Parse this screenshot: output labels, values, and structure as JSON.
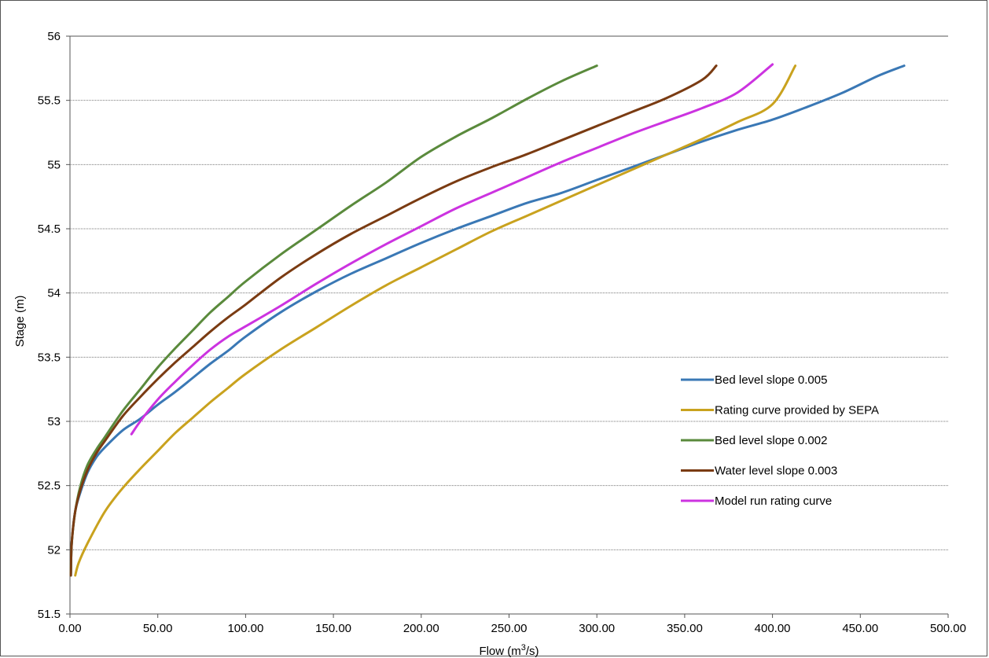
{
  "chart_data": {
    "type": "line",
    "title": "",
    "xlabel": "Flow (m",
    "xlabel_sup": "3",
    "xlabel_tail": "/s)",
    "ylabel": "Stage (m)",
    "xlim": [
      0,
      500
    ],
    "ylim": [
      51.5,
      56
    ],
    "x_ticks": [
      "0.00",
      "50.00",
      "100.00",
      "150.00",
      "200.00",
      "250.00",
      "300.00",
      "350.00",
      "400.00",
      "450.00",
      "500.00"
    ],
    "y_ticks": [
      "51.5",
      "52",
      "52.5",
      "53",
      "53.5",
      "54",
      "54.5",
      "55",
      "55.5",
      "56"
    ],
    "grid": "horizontal",
    "legend_position": "right",
    "series": [
      {
        "name": "Bed level slope 0.005",
        "color": "#3A78B5",
        "points": [
          [
            0.5,
            51.8
          ],
          [
            1,
            52.05
          ],
          [
            3,
            52.3
          ],
          [
            6,
            52.45
          ],
          [
            10,
            52.6
          ],
          [
            15,
            52.72
          ],
          [
            20,
            52.8
          ],
          [
            30,
            52.93
          ],
          [
            40,
            53.02
          ],
          [
            50,
            53.13
          ],
          [
            60,
            53.23
          ],
          [
            70,
            53.34
          ],
          [
            80,
            53.45
          ],
          [
            90,
            53.55
          ],
          [
            100,
            53.66
          ],
          [
            120,
            53.85
          ],
          [
            140,
            54.01
          ],
          [
            160,
            54.15
          ],
          [
            180,
            54.27
          ],
          [
            200,
            54.39
          ],
          [
            220,
            54.5
          ],
          [
            240,
            54.6
          ],
          [
            260,
            54.7
          ],
          [
            280,
            54.78
          ],
          [
            300,
            54.88
          ],
          [
            320,
            54.98
          ],
          [
            340,
            55.08
          ],
          [
            360,
            55.18
          ],
          [
            380,
            55.27
          ],
          [
            400,
            55.35
          ],
          [
            420,
            55.45
          ],
          [
            440,
            55.56
          ],
          [
            460,
            55.69
          ],
          [
            475,
            55.77
          ]
        ]
      },
      {
        "name": "Rating curve provided by SEPA",
        "color": "#C9A21E",
        "points": [
          [
            3,
            51.8
          ],
          [
            5,
            51.9
          ],
          [
            10,
            52.05
          ],
          [
            20,
            52.3
          ],
          [
            30,
            52.48
          ],
          [
            40,
            52.63
          ],
          [
            50,
            52.77
          ],
          [
            60,
            52.91
          ],
          [
            70,
            53.03
          ],
          [
            80,
            53.15
          ],
          [
            90,
            53.26
          ],
          [
            100,
            53.37
          ],
          [
            120,
            53.56
          ],
          [
            140,
            53.73
          ],
          [
            160,
            53.9
          ],
          [
            180,
            54.06
          ],
          [
            200,
            54.2
          ],
          [
            220,
            54.34
          ],
          [
            240,
            54.48
          ],
          [
            260,
            54.6
          ],
          [
            280,
            54.72
          ],
          [
            300,
            54.84
          ],
          [
            320,
            54.96
          ],
          [
            340,
            55.08
          ],
          [
            360,
            55.2
          ],
          [
            380,
            55.33
          ],
          [
            400,
            55.47
          ],
          [
            413,
            55.77
          ]
        ]
      },
      {
        "name": "Bed level slope 0.002",
        "color": "#5A8A3C",
        "points": [
          [
            0.5,
            51.8
          ],
          [
            1,
            52.05
          ],
          [
            3,
            52.3
          ],
          [
            6,
            52.5
          ],
          [
            10,
            52.66
          ],
          [
            15,
            52.78
          ],
          [
            20,
            52.88
          ],
          [
            30,
            53.08
          ],
          [
            40,
            53.25
          ],
          [
            50,
            53.42
          ],
          [
            60,
            53.57
          ],
          [
            70,
            53.71
          ],
          [
            80,
            53.85
          ],
          [
            90,
            53.97
          ],
          [
            100,
            54.09
          ],
          [
            120,
            54.3
          ],
          [
            140,
            54.49
          ],
          [
            160,
            54.68
          ],
          [
            180,
            54.86
          ],
          [
            200,
            55.06
          ],
          [
            220,
            55.22
          ],
          [
            240,
            55.36
          ],
          [
            260,
            55.51
          ],
          [
            280,
            55.65
          ],
          [
            300,
            55.77
          ]
        ]
      },
      {
        "name": "Water level slope 0.003",
        "color": "#7A3B12",
        "points": [
          [
            0.5,
            51.8
          ],
          [
            1,
            52.05
          ],
          [
            3,
            52.3
          ],
          [
            6,
            52.47
          ],
          [
            10,
            52.62
          ],
          [
            15,
            52.75
          ],
          [
            20,
            52.85
          ],
          [
            30,
            53.04
          ],
          [
            40,
            53.19
          ],
          [
            50,
            53.33
          ],
          [
            60,
            53.46
          ],
          [
            70,
            53.58
          ],
          [
            80,
            53.7
          ],
          [
            90,
            53.81
          ],
          [
            100,
            53.91
          ],
          [
            120,
            54.12
          ],
          [
            140,
            54.3
          ],
          [
            160,
            54.46
          ],
          [
            180,
            54.6
          ],
          [
            200,
            54.74
          ],
          [
            220,
            54.87
          ],
          [
            240,
            54.98
          ],
          [
            260,
            55.08
          ],
          [
            280,
            55.19
          ],
          [
            300,
            55.3
          ],
          [
            320,
            55.41
          ],
          [
            340,
            55.52
          ],
          [
            360,
            55.66
          ],
          [
            368,
            55.77
          ]
        ]
      },
      {
        "name": "Model run rating curve",
        "color": "#CC33E0",
        "points": [
          [
            35,
            52.9
          ],
          [
            40,
            53.0
          ],
          [
            50,
            53.17
          ],
          [
            60,
            53.31
          ],
          [
            70,
            53.44
          ],
          [
            80,
            53.56
          ],
          [
            90,
            53.66
          ],
          [
            100,
            53.74
          ],
          [
            120,
            53.9
          ],
          [
            140,
            54.07
          ],
          [
            160,
            54.23
          ],
          [
            180,
            54.38
          ],
          [
            200,
            54.52
          ],
          [
            220,
            54.66
          ],
          [
            240,
            54.78
          ],
          [
            260,
            54.9
          ],
          [
            280,
            55.02
          ],
          [
            300,
            55.13
          ],
          [
            320,
            55.24
          ],
          [
            340,
            55.34
          ],
          [
            360,
            55.44
          ],
          [
            380,
            55.56
          ],
          [
            400,
            55.78
          ]
        ]
      }
    ]
  }
}
